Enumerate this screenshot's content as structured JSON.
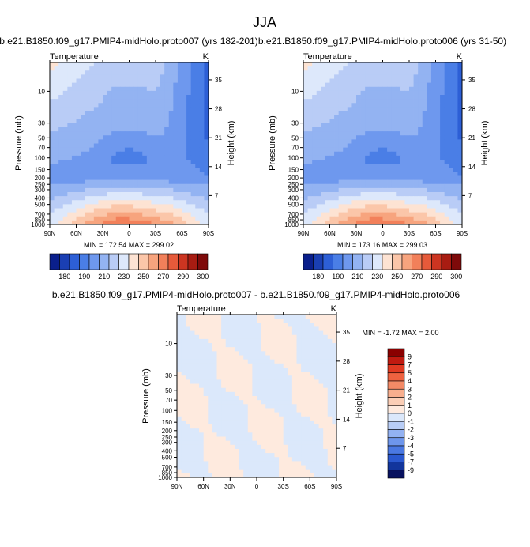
{
  "page_title": "JJA",
  "chart_data": [
    {
      "type": "heatmap",
      "title": "b.e21.B1850.f09_g17.PMIP4-midHolo.proto007 (yrs 182-201)",
      "variable": "Temperature",
      "units": "K",
      "ylabel_left": "Pressure (mb)",
      "ylabel_right": "Height (km)",
      "x_ticks": [
        "90N",
        "60N",
        "30N",
        "0",
        "30S",
        "60S",
        "90S"
      ],
      "pressure_ticks": [
        "10",
        "30",
        "50",
        "70",
        "100",
        "150",
        "200",
        "250",
        "300",
        "400",
        "500",
        "700",
        "850",
        "1000"
      ],
      "height_ticks": [
        "35",
        "28",
        "21",
        "14",
        "7"
      ],
      "stats": "MIN = 172.54   MAX = 299.02",
      "colorbar_labels": [
        "180",
        "190",
        "210",
        "230",
        "250",
        "270",
        "290",
        "300"
      ]
    },
    {
      "type": "heatmap",
      "title": "b.e21.B1850.f09_g17.PMIP4-midHolo.proto006 (yrs 31-50)",
      "variable": "Temperature",
      "units": "K",
      "ylabel_left": "Pressure (mb)",
      "ylabel_right": "Height (km)",
      "x_ticks": [
        "90N",
        "60N",
        "30N",
        "0",
        "30S",
        "60S",
        "90S"
      ],
      "pressure_ticks": [
        "10",
        "30",
        "50",
        "70",
        "100",
        "150",
        "200",
        "250",
        "300",
        "400",
        "500",
        "700",
        "850",
        "1000"
      ],
      "height_ticks": [
        "35",
        "28",
        "21",
        "14",
        "7"
      ],
      "stats": "MIN = 173.16   MAX = 299.03",
      "colorbar_labels": [
        "180",
        "190",
        "210",
        "230",
        "250",
        "270",
        "290",
        "300"
      ]
    },
    {
      "type": "heatmap",
      "title": "b.e21.B1850.f09_g17.PMIP4-midHolo.proto007 - b.e21.B1850.f09_g17.PMIP4-midHolo.proto006",
      "variable": "Temperature",
      "units": "K",
      "ylabel_left": "Pressure (mb)",
      "ylabel_right": "Height (km)",
      "x_ticks": [
        "90N",
        "60N",
        "30N",
        "0",
        "30S",
        "60S",
        "90S"
      ],
      "pressure_ticks": [
        "10",
        "30",
        "50",
        "70",
        "100",
        "150",
        "200",
        "250",
        "300",
        "400",
        "500",
        "700",
        "850",
        "1000"
      ],
      "height_ticks": [
        "35",
        "28",
        "21",
        "14",
        "7"
      ],
      "stats": "MIN =  -1.72   MAX =   2.00",
      "colorbar_labels": [
        "9",
        "7",
        "5",
        "4",
        "3",
        "2",
        "1",
        "0",
        "-1",
        "-2",
        "-3",
        "-4",
        "-5",
        "-7",
        "-9"
      ]
    }
  ],
  "colors": {
    "temp_scale": [
      "#0a1f8c",
      "#1a3fb3",
      "#2d5fd6",
      "#4a7ee6",
      "#6e98ee",
      "#93b3f2",
      "#b9ccf6",
      "#dde8fb",
      "#fde3d3",
      "#fbc6a9",
      "#f7a47e",
      "#f2805a",
      "#e65a3a",
      "#cc3521",
      "#a81c12",
      "#7e0a0a"
    ],
    "diff_scale": [
      "#8a0000",
      "#c01a10",
      "#e03a22",
      "#ee6240",
      "#f38a66",
      "#f7ae8e",
      "#fbceb6",
      "#feeade",
      "#dbe8fb",
      "#b8cdf6",
      "#93b2f2",
      "#6e96ec",
      "#4a78e2",
      "#2a58cf",
      "#12359c",
      "#08125f"
    ]
  }
}
